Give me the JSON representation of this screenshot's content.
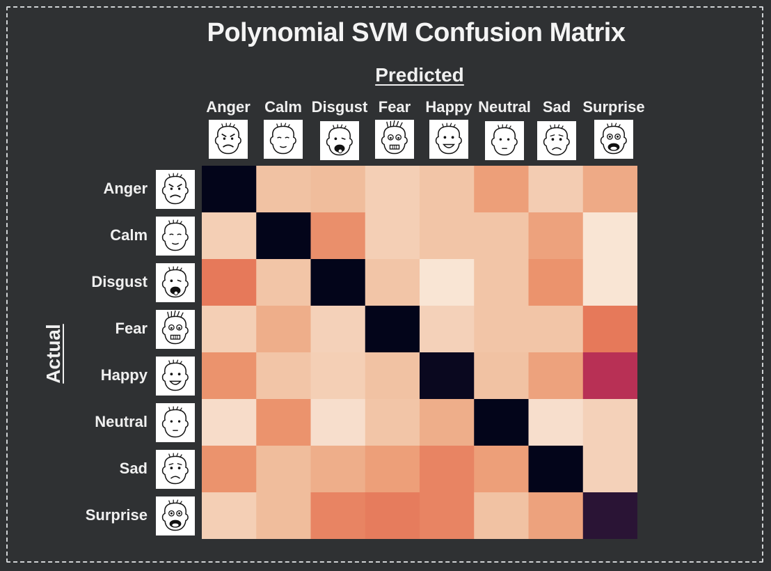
{
  "chart_data": {
    "type": "heatmap",
    "title": "Polynomial SVM Confusion Matrix",
    "xlabel": "Predicted",
    "ylabel": "Actual",
    "x_categories": [
      "Anger",
      "Calm",
      "Disgust",
      "Fear",
      "Happy",
      "Neutral",
      "Sad",
      "Surprise"
    ],
    "y_categories": [
      "Anger",
      "Calm",
      "Disgust",
      "Fear",
      "Happy",
      "Neutral",
      "Sad",
      "Surprise"
    ],
    "face_icons": [
      "angry-face-icon",
      "calm-face-icon",
      "disgust-face-icon",
      "fear-face-icon",
      "happy-face-icon",
      "neutral-face-icon",
      "sad-face-icon",
      "surprise-face-icon"
    ],
    "colormap": "rocket",
    "values": [
      [
        1.0,
        0.18,
        0.2,
        0.13,
        0.17,
        0.28,
        0.14,
        0.25
      ],
      [
        0.13,
        1.0,
        0.32,
        0.13,
        0.17,
        0.17,
        0.27,
        0.03
      ],
      [
        0.38,
        0.17,
        1.0,
        0.17,
        0.03,
        0.17,
        0.31,
        0.03
      ],
      [
        0.13,
        0.24,
        0.12,
        1.0,
        0.12,
        0.17,
        0.17,
        0.38
      ],
      [
        0.31,
        0.17,
        0.13,
        0.18,
        0.98,
        0.18,
        0.27,
        0.55
      ],
      [
        0.07,
        0.31,
        0.06,
        0.17,
        0.24,
        1.0,
        0.06,
        0.12
      ],
      [
        0.31,
        0.2,
        0.24,
        0.28,
        0.35,
        0.28,
        1.0,
        0.12
      ],
      [
        0.13,
        0.2,
        0.35,
        0.37,
        0.35,
        0.18,
        0.27,
        0.88
      ]
    ]
  }
}
